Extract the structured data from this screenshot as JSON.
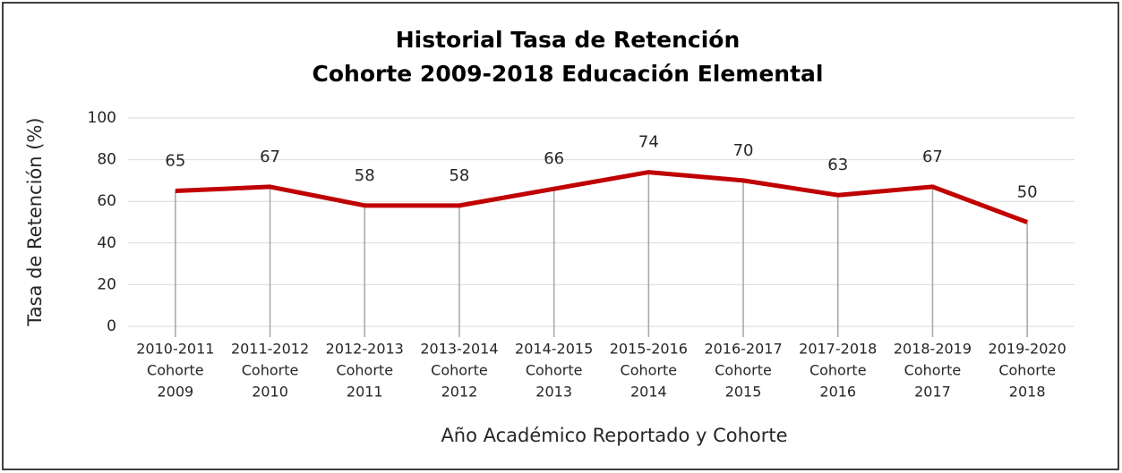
{
  "chart_data": {
    "type": "line",
    "title": "Historial Tasa de Retención",
    "subtitle": "Cohorte 2009-2018 Educación Elemental",
    "x_label": "Año Académico Reportado y Cohorte",
    "y_label": "Tasa de Retención (%)",
    "categories": [
      [
        "2010-2011",
        "Cohorte",
        "2009"
      ],
      [
        "2011-2012",
        "Cohorte",
        "2010"
      ],
      [
        "2012-2013",
        "Cohorte",
        "2011"
      ],
      [
        "2013-2014",
        "Cohorte",
        "2012"
      ],
      [
        "2014-2015",
        "Cohorte",
        "2013"
      ],
      [
        "2015-2016",
        "Cohorte",
        "2014"
      ],
      [
        "2016-2017",
        "Cohorte",
        "2015"
      ],
      [
        "2017-2018",
        "Cohorte",
        "2016"
      ],
      [
        "2018-2019",
        "Cohorte",
        "2017"
      ],
      [
        "2019-2020",
        "Cohorte",
        "2018"
      ]
    ],
    "values": [
      65,
      67,
      58,
      58,
      66,
      74,
      70,
      63,
      67,
      50
    ],
    "color": "#c00000",
    "ylim": [
      0,
      100
    ],
    "yticks": [
      0,
      20,
      40,
      60,
      80,
      100
    ],
    "grid": true,
    "drop_lines": true
  }
}
